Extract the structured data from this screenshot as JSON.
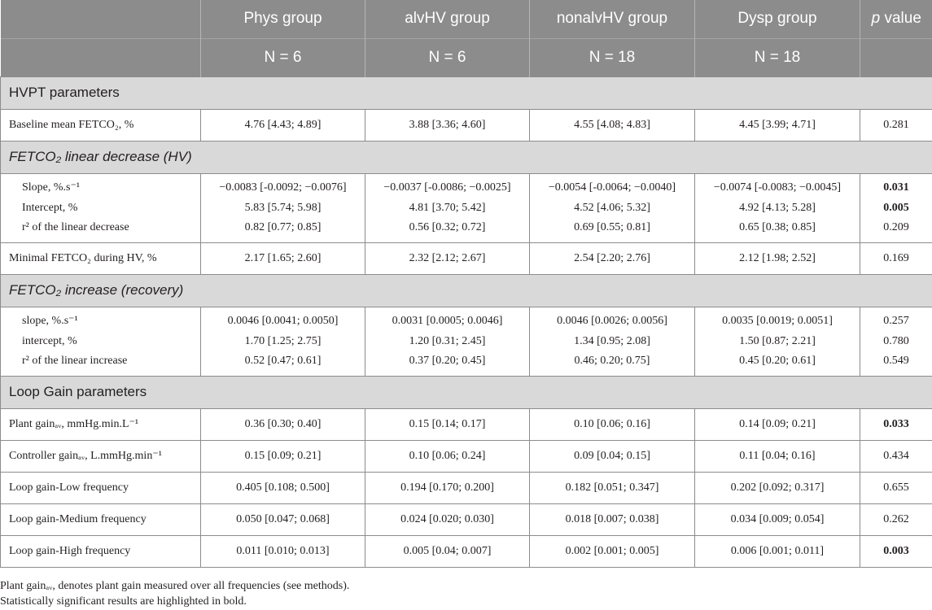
{
  "header": {
    "row1": [
      "Phys group",
      "alvHV group",
      "nonalvHV group",
      "Dysp group",
      "p value"
    ],
    "row2": [
      "N = 6",
      "N = 6",
      "N = 18",
      "N = 18"
    ]
  },
  "sections": {
    "hvpt": "HVPT parameters",
    "linear": "FETCO₂ linear decrease (HV)",
    "recovery": "FETCO₂ increase (recovery)",
    "loopgain": "Loop Gain parameters"
  },
  "rows": {
    "baseline": {
      "label": "Baseline mean FETCO₂, %",
      "v": [
        "4.76 [4.43; 4.89]",
        "3.88 [3.36; 4.60]",
        "4.55 [4.08; 4.83]",
        "4.45 [3.99; 4.71]",
        "0.281"
      ]
    },
    "slope": {
      "label": "Slope, %.s⁻¹",
      "v": [
        "−0.0083 [-0.0092; −0.0076]",
        "−0.0037 [-0.0086; −0.0025]",
        "−0.0054 [-0.0064; −0.0040]",
        "−0.0074 [-0.0083; −0.0045]",
        "0.031"
      ]
    },
    "intercept": {
      "label": "Intercept, %",
      "v": [
        "5.83 [5.74; 5.98]",
        "4.81 [3.70; 5.42]",
        "4.52 [4.06; 5.32]",
        "4.92 [4.13; 5.28]",
        "0.005"
      ]
    },
    "r2dec": {
      "label": "r² of the linear decrease",
      "v": [
        "0.82 [0.77; 0.85]",
        "0.56 [0.32; 0.72]",
        "0.69 [0.55; 0.81]",
        "0.65 [0.38; 0.85]",
        "0.209"
      ]
    },
    "minimal": {
      "label": "Minimal FETCO₂ during HV, %",
      "v": [
        "2.17 [1.65; 2.60]",
        "2.32 [2.12; 2.67]",
        "2.54 [2.20; 2.76]",
        "2.12 [1.98; 2.52]",
        "0.169"
      ]
    },
    "rslope": {
      "label": "slope, %.s⁻¹",
      "v": [
        "0.0046 [0.0041; 0.0050]",
        "0.0031 [0.0005; 0.0046]",
        "0.0046 [0.0026; 0.0056]",
        "0.0035 [0.0019; 0.0051]",
        "0.257"
      ]
    },
    "rintercept": {
      "label": "intercept, %",
      "v": [
        "1.70 [1.25; 2.75]",
        "1.20 [0.31; 2.45]",
        "1.34 [0.95; 2.08]",
        "1.50 [0.87; 2.21]",
        "0.780"
      ]
    },
    "r2inc": {
      "label": "r² of the linear increase",
      "v": [
        "0.52 [0.47; 0.61]",
        "0.37 [0.20; 0.45]",
        "0.46; 0.20; 0.75]",
        "0.45 [0.20; 0.61]",
        "0.549"
      ]
    },
    "plant": {
      "label": "Plant gainₐᵥ, mmHg.min.L⁻¹",
      "v": [
        "0.36 [0.30; 0.40]",
        "0.15 [0.14; 0.17]",
        "0.10 [0.06; 0.16]",
        "0.14 [0.09; 0.21]",
        "0.033"
      ]
    },
    "controller": {
      "label": "Controller gainₐᵥ, L.mmHg.min⁻¹",
      "v": [
        "0.15 [0.09; 0.21]",
        "0.10 [0.06; 0.24]",
        "0.09 [0.04; 0.15]",
        "0.11 [0.04; 0.16]",
        "0.434"
      ]
    },
    "lglow": {
      "label": "Loop gain-Low frequency",
      "v": [
        "0.405 [0.108; 0.500]",
        "0.194 [0.170; 0.200]",
        "0.182 [0.051; 0.347]",
        "0.202 [0.092; 0.317]",
        "0.655"
      ]
    },
    "lgmed": {
      "label": "Loop gain-Medium frequency",
      "v": [
        "0.050 [0.047; 0.068]",
        "0.024 [0.020; 0.030]",
        "0.018 [0.007; 0.038]",
        "0.034 [0.009; 0.054]",
        "0.262"
      ]
    },
    "lghigh": {
      "label": "Loop gain-High frequency",
      "v": [
        "0.011 [0.010; 0.013]",
        "0.005 [0.04; 0.007]",
        "0.002 [0.001; 0.005]",
        "0.006 [0.001; 0.011]",
        "0.003"
      ]
    }
  },
  "notes": {
    "line1": "Plant gainₐᵥ, denotes plant gain measured over all frequencies (see methods).",
    "line2": "Statistically significant results are highlighted in bold."
  }
}
